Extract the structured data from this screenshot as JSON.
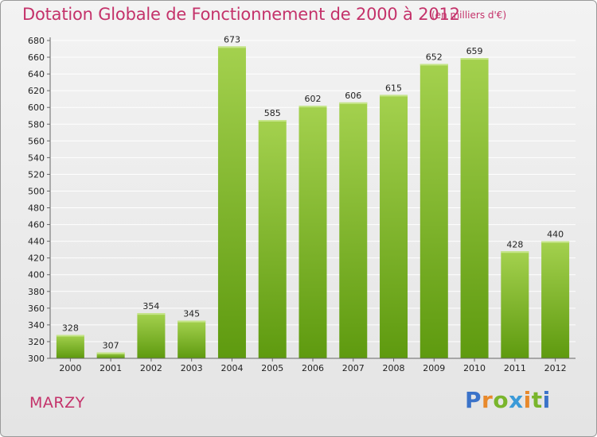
{
  "chart_data": {
    "type": "bar",
    "title": "Dotation Globale de Fonctionnement de 2000 à 2012",
    "subtitle": "(en milliers d'€)",
    "categories": [
      "2000",
      "2001",
      "2002",
      "2003",
      "2004",
      "2005",
      "2006",
      "2007",
      "2008",
      "2009",
      "2010",
      "2011",
      "2012"
    ],
    "values": [
      328,
      307,
      354,
      345,
      673,
      585,
      602,
      606,
      615,
      652,
      659,
      428,
      440
    ],
    "ylim": [
      300,
      680
    ],
    "ytick_step": 20,
    "grid": true,
    "colors": {
      "bar_top": "#a4d14e",
      "bar_bottom": "#5e9a0f",
      "grid": "#ffffff",
      "axis": "#666666"
    }
  },
  "location": "MARZY",
  "logo": {
    "text": "Proxiti",
    "letters": [
      {
        "char": "P",
        "color": "#3b73c9"
      },
      {
        "char": "r",
        "color": "#e8892b"
      },
      {
        "char": "o",
        "color": "#79b52c"
      },
      {
        "char": "x",
        "color": "#3b9ad8"
      },
      {
        "char": "i",
        "color": "#e8892b"
      },
      {
        "char": "t",
        "color": "#79b52c"
      },
      {
        "char": "i",
        "color": "#3b73c9"
      }
    ]
  }
}
